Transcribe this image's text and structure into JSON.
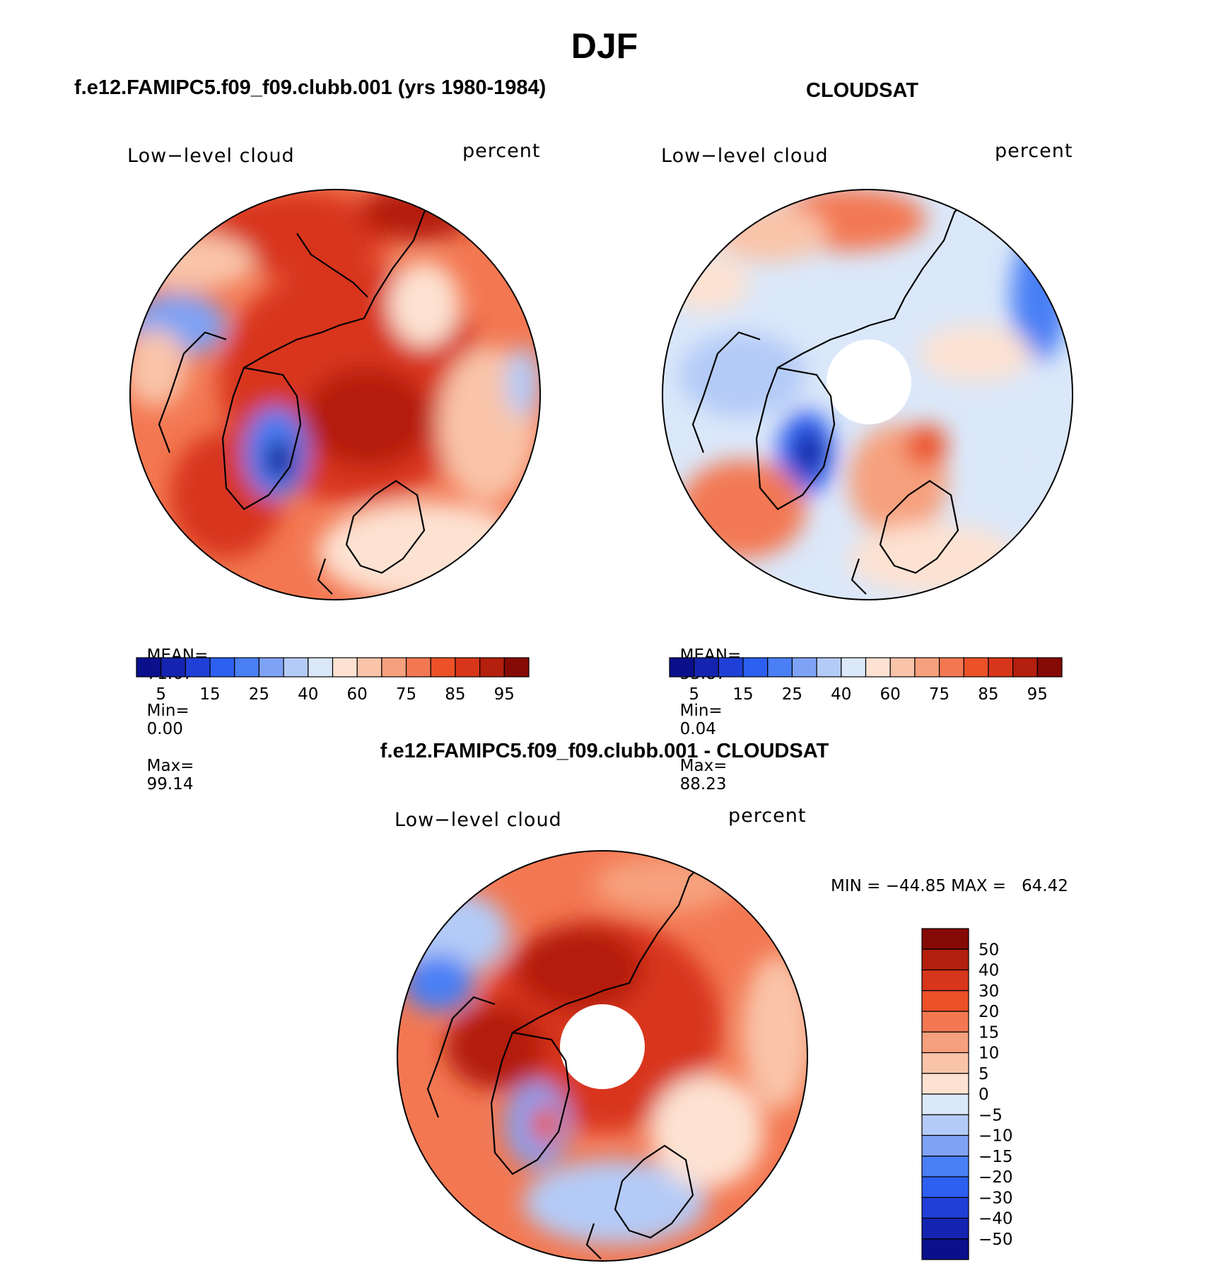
{
  "title": "DJF",
  "panels": [
    {
      "id": "model",
      "heading": "f.e12.FAMIPC5.f09_f09.clubb.001 (yrs 1980-1984)",
      "variable": "Low−level cloud",
      "units": "percent",
      "stats": {
        "mean_label": "MEAN=",
        "mean": "71.67",
        "min_label": "Min=",
        "min": "0.00",
        "max_label": "Max=",
        "max": "99.14"
      },
      "has_polar_hole": false
    },
    {
      "id": "obs",
      "heading": "CLOUDSAT",
      "variable": "Low−level cloud",
      "units": "percent",
      "stats": {
        "mean_label": "MEAN=",
        "mean": "53.87",
        "min_label": "Min=",
        "min": "0.04",
        "max_label": "Max=",
        "max": "88.23"
      },
      "has_polar_hole": true
    },
    {
      "id": "diff",
      "heading": "f.e12.FAMIPC5.f09_f09.clubb.001 - CLOUDSAT",
      "variable": "Low−level cloud",
      "units": "percent",
      "stats": {
        "text": "MIN = −44.85 MAX =   64.42"
      },
      "has_polar_hole": true
    }
  ],
  "abs_colorbar": {
    "colors": [
      "#0a0f8c",
      "#1424b0",
      "#1f3fd6",
      "#2d5ff0",
      "#4a7ff5",
      "#7ea2f5",
      "#b4cbf7",
      "#dbe8fa",
      "#fde2d2",
      "#f9c4a9",
      "#f6a07d",
      "#f37852",
      "#ec5128",
      "#d8361a",
      "#b41f0e",
      "#850a06"
    ],
    "labels": [
      "5",
      "15",
      "25",
      "40",
      "60",
      "75",
      "85",
      "95"
    ]
  },
  "diff_colorbar": {
    "colors": [
      "#850a06",
      "#b41f0e",
      "#d8361a",
      "#ec5128",
      "#f37852",
      "#f6a07d",
      "#f9c4a9",
      "#fde2d2",
      "#dbe8fa",
      "#b4cbf7",
      "#7ea2f5",
      "#4a7ff5",
      "#2d5ff0",
      "#1f3fd6",
      "#1424b0",
      "#0a0f8c"
    ],
    "labels": [
      "50",
      "40",
      "30",
      "20",
      "15",
      "10",
      "5",
      "0",
      "−5",
      "−10",
      "−15",
      "−20",
      "−30",
      "−40",
      "−50"
    ]
  }
}
